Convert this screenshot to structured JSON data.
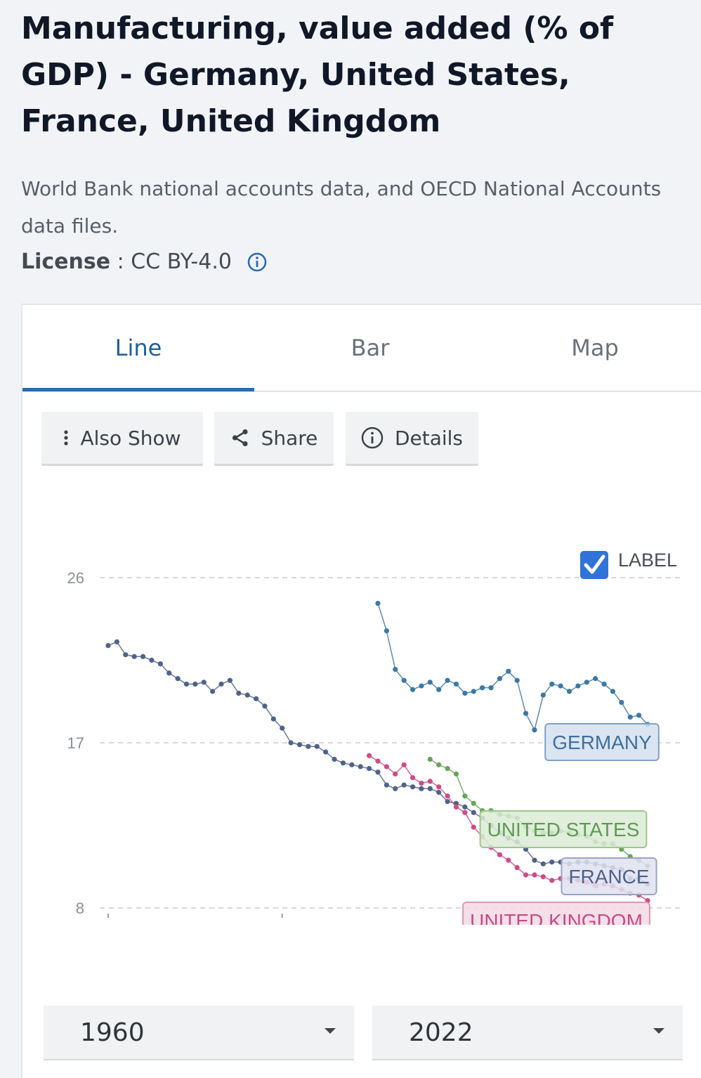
{
  "page": {
    "title": "Manufacturing, value added (% of GDP) - Germany, United States, France, United Kingdom",
    "source": "World Bank national accounts data, and OECD National Accounts data files.",
    "license_label": "License",
    "license_sep": " : ",
    "license_value": "CC BY-4.0"
  },
  "tabs": [
    {
      "label": "Line",
      "active": true
    },
    {
      "label": "Bar",
      "active": false
    },
    {
      "label": "Map",
      "active": false
    }
  ],
  "toolbar": {
    "also_show": "Also Show",
    "share": "Share",
    "details": "Details"
  },
  "label_toggle": {
    "text": "LABEL",
    "checked": true
  },
  "range": {
    "start": "1960",
    "end": "2022"
  },
  "colors": {
    "accent": "#2a6ab0",
    "germany": "#3b78a6",
    "united_states": "#69a25c",
    "france": "#4f6289",
    "united_kingdom": "#cf4b86"
  },
  "chart_data": {
    "type": "line",
    "title": "",
    "xlabel": "",
    "ylabel": "",
    "xlim": [
      1960,
      2022
    ],
    "ylim": [
      8,
      26
    ],
    "yticks": [
      8,
      17,
      26
    ],
    "grid": true,
    "series": [
      {
        "name": "GERMANY",
        "color": "#3b78a6",
        "x": [
          1991,
          1992,
          1993,
          1994,
          1995,
          1996,
          1997,
          1998,
          1999,
          2000,
          2001,
          2002,
          2003,
          2004,
          2005,
          2006,
          2007,
          2008,
          2009,
          2010,
          2011,
          2012,
          2013,
          2014,
          2015,
          2016,
          2017,
          2018,
          2019,
          2020,
          2021,
          2022
        ],
        "values": [
          24.6,
          23.1,
          21.0,
          20.4,
          19.9,
          20.1,
          20.3,
          19.9,
          20.4,
          20.2,
          19.7,
          19.8,
          20.0,
          20.0,
          20.5,
          20.9,
          20.4,
          18.6,
          17.7,
          19.6,
          20.2,
          20.1,
          19.8,
          20.1,
          20.3,
          20.5,
          20.2,
          19.8,
          19.2,
          18.4,
          18.5,
          18.0
        ]
      },
      {
        "name": "UNITED STATES",
        "color": "#69a25c",
        "x": [
          1997,
          1998,
          1999,
          2000,
          2001,
          2002,
          2003,
          2004,
          2005,
          2006,
          2007,
          2008,
          2009,
          2010,
          2011,
          2012,
          2013,
          2014,
          2015,
          2016,
          2017,
          2018,
          2019,
          2020,
          2021,
          2022
        ],
        "values": [
          16.1,
          15.8,
          15.6,
          15.3,
          14.1,
          13.7,
          13.3,
          13.3,
          13.1,
          13.0,
          12.9,
          12.4,
          12.2,
          12.1,
          12.1,
          12.2,
          12.1,
          12.0,
          11.9,
          11.6,
          11.5,
          11.5,
          11.2,
          10.8,
          10.6,
          10.3
        ]
      },
      {
        "name": "FRANCE",
        "color": "#4f6289",
        "x": [
          1960,
          1961,
          1962,
          1963,
          1964,
          1965,
          1966,
          1967,
          1968,
          1969,
          1970,
          1971,
          1972,
          1973,
          1974,
          1975,
          1976,
          1977,
          1978,
          1979,
          1980,
          1981,
          1982,
          1983,
          1984,
          1985,
          1986,
          1987,
          1988,
          1989,
          1990,
          1991,
          1992,
          1993,
          1994,
          1995,
          1996,
          1997,
          1998,
          1999,
          2000,
          2001,
          2002,
          2003,
          2004,
          2005,
          2006,
          2007,
          2008,
          2009,
          2010,
          2011,
          2012,
          2013,
          2014,
          2015,
          2016,
          2017,
          2018,
          2019,
          2020,
          2021,
          2022
        ],
        "values": [
          22.3,
          22.5,
          21.8,
          21.7,
          21.7,
          21.5,
          21.3,
          20.8,
          20.5,
          20.2,
          20.2,
          20.3,
          19.8,
          20.2,
          20.4,
          19.7,
          19.6,
          19.4,
          19.0,
          18.3,
          17.8,
          17.0,
          16.9,
          16.8,
          16.8,
          16.5,
          16.1,
          15.9,
          15.8,
          15.7,
          15.6,
          15.4,
          14.7,
          14.5,
          14.7,
          14.6,
          14.5,
          14.5,
          14.3,
          13.8,
          13.7,
          13.5,
          13.2,
          12.9,
          12.5,
          12.1,
          11.8,
          11.6,
          11.2,
          10.6,
          10.4,
          10.5,
          10.5,
          10.4,
          10.5,
          10.5,
          10.4,
          10.3,
          10.2,
          10.1,
          9.6,
          9.6,
          9.3
        ]
      },
      {
        "name": "UNITED KINGDOM",
        "color": "#cf4b86",
        "x": [
          1990,
          1991,
          1992,
          1993,
          1994,
          1995,
          1996,
          1997,
          1998,
          1999,
          2000,
          2001,
          2002,
          2003,
          2004,
          2005,
          2006,
          2007,
          2008,
          2009,
          2010,
          2011,
          2012,
          2013,
          2014,
          2015,
          2016,
          2017,
          2018,
          2019,
          2020,
          2021,
          2022
        ],
        "values": [
          16.3,
          16.0,
          15.7,
          15.3,
          15.8,
          15.1,
          14.8,
          14.9,
          14.6,
          14.1,
          13.5,
          13.2,
          12.4,
          11.9,
          11.3,
          10.9,
          10.6,
          10.2,
          9.8,
          9.8,
          9.7,
          9.5,
          9.6,
          9.6,
          9.5,
          9.4,
          9.2,
          9.3,
          9.2,
          9.0,
          8.8,
          8.7,
          8.4
        ]
      }
    ]
  }
}
